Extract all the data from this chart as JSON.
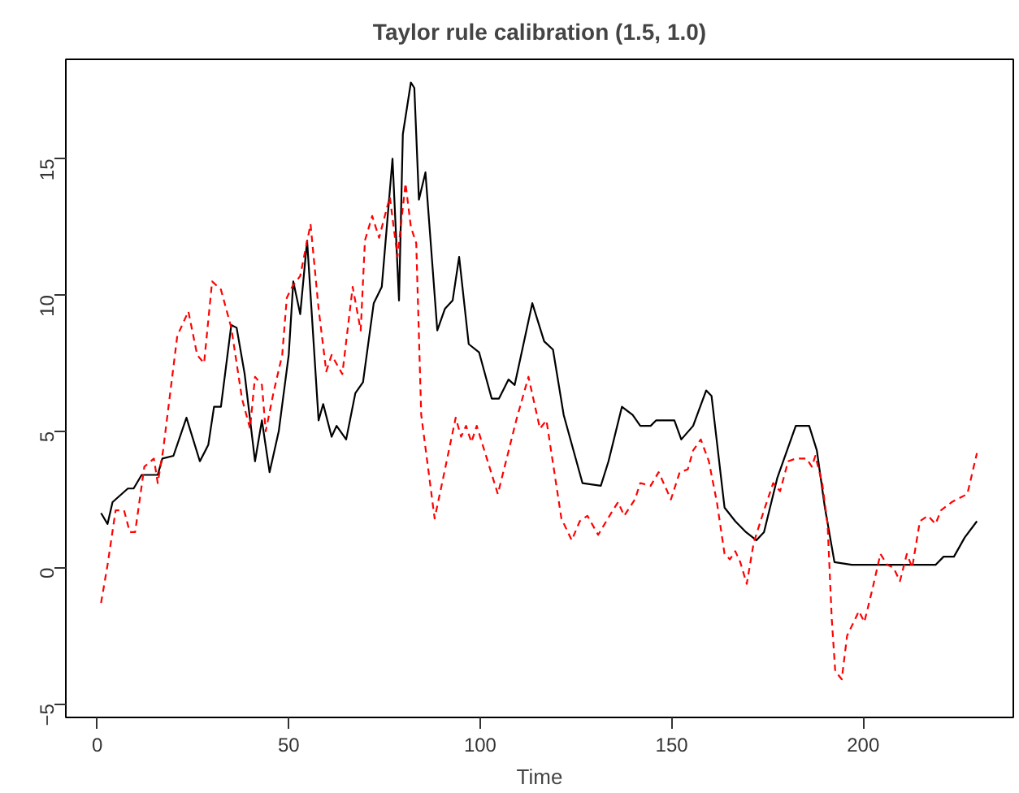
{
  "chart_data": {
    "type": "line",
    "title": "Taylor rule calibration (1.5, 1.0)",
    "xlabel": "Time",
    "xlim": [
      -8.2,
      239.2
    ],
    "ylim": [
      -5.5,
      18.65
    ],
    "xticks": [
      0,
      50,
      100,
      150,
      200
    ],
    "yticks": [
      -5,
      0,
      5,
      10,
      15
    ],
    "grid": false,
    "marker": "none",
    "series": [
      {
        "color": "#000000",
        "line_style": "solid",
        "x": [
          1,
          2.7,
          4,
          8,
          9.5,
          11.6,
          15.8,
          17,
          19.9,
          23.3,
          26.8,
          29,
          30.5,
          32.3,
          35,
          36.4,
          38.5,
          41.2,
          43,
          45,
          47.4,
          50,
          51.2,
          53,
          54.8,
          57.8,
          59,
          61.2,
          62.5,
          65,
          67.4,
          69.4,
          72.2,
          74.3,
          77.1,
          78.8,
          79.8,
          81.9,
          82.8,
          84,
          85.7,
          88.8,
          90.8,
          92.8,
          94.5,
          97,
          99.7,
          103,
          104.9,
          107.4,
          109,
          113.6,
          116.7,
          119,
          121.8,
          126.7,
          131.5,
          133.5,
          137,
          139.8,
          141.8,
          144.5,
          145.9,
          150.7,
          152.5,
          155.6,
          159,
          160.4,
          163.8,
          166.6,
          169.4,
          172.1,
          174.1,
          177.6,
          182.4,
          185.9,
          187.9,
          190,
          192.5,
          197,
          202.4,
          218.9,
          221,
          223.7,
          226.5,
          229.7
        ],
        "values": [
          2.0,
          1.6,
          2.4,
          2.9,
          2.9,
          3.4,
          3.4,
          4.0,
          4.1,
          5.5,
          3.9,
          4.5,
          5.9,
          5.9,
          8.9,
          8.8,
          7.1,
          3.9,
          5.4,
          3.5,
          5.0,
          7.8,
          10.5,
          9.3,
          12.0,
          5.4,
          6.0,
          4.8,
          5.2,
          4.7,
          6.4,
          6.8,
          9.7,
          10.3,
          15.0,
          9.8,
          15.9,
          17.8,
          17.6,
          13.5,
          14.5,
          8.7,
          9.5,
          9.8,
          11.4,
          8.2,
          7.9,
          6.2,
          6.2,
          6.9,
          6.7,
          9.7,
          8.3,
          8.0,
          5.6,
          3.1,
          3.0,
          3.9,
          5.9,
          5.6,
          5.2,
          5.2,
          5.4,
          5.4,
          4.7,
          5.2,
          6.5,
          6.3,
          2.2,
          1.7,
          1.3,
          1.0,
          1.3,
          3.3,
          5.2,
          5.2,
          4.3,
          2.2,
          0.2,
          0.1,
          0.1,
          0.1,
          0.4,
          0.4,
          1.1,
          1.7
        ]
      },
      {
        "color": "#ff0000",
        "line_style": "dashed",
        "x": [
          1,
          2.7,
          4.8,
          7,
          8.5,
          9.9,
          12.3,
          14.8,
          15.8,
          17.2,
          20.9,
          23.8,
          26.1,
          27.9,
          30,
          32.3,
          35,
          37.8,
          39.9,
          41.2,
          43,
          44,
          46,
          48.3,
          49.5,
          50.9,
          53,
          55.7,
          57.8,
          59.8,
          61.2,
          64,
          66.7,
          68.8,
          69.9,
          71.8,
          73.6,
          76.4,
          78.4,
          80.5,
          81.9,
          83.3,
          84.6,
          88.1,
          90.2,
          93.6,
          95,
          96.3,
          97.7,
          99.1,
          104.6,
          109.4,
          112.6,
          115.6,
          117.3,
          121.2,
          123.9,
          126,
          128,
          130.8,
          134.2,
          136,
          137.6,
          140.4,
          141.8,
          144.5,
          146.6,
          149.8,
          152.1,
          154.2,
          155.6,
          157.6,
          159.7,
          161.8,
          163.8,
          165.2,
          166.6,
          167.9,
          169.6,
          171.4,
          174.1,
          176.5,
          178.3,
          180.4,
          182.4,
          185.2,
          186.6,
          187.5,
          189.3,
          190.7,
          191.8,
          192.7,
          194.4,
          195.8,
          198.9,
          200.3,
          202.4,
          204.5,
          206.3,
          207.9,
          209.6,
          211.4,
          212.8,
          214.8,
          216.9,
          218.9,
          220.3,
          223.1,
          227.2,
          229.7
        ],
        "values": [
          -1.3,
          0.1,
          2.1,
          2.1,
          1.3,
          1.3,
          3.7,
          4.0,
          3.1,
          4.3,
          8.5,
          9.4,
          7.8,
          7.5,
          10.5,
          10.2,
          8.8,
          6.2,
          5.1,
          7.0,
          6.7,
          5.0,
          6.4,
          7.8,
          9.9,
          10.3,
          10.7,
          12.6,
          9.5,
          7.2,
          7.8,
          7.1,
          10.3,
          8.7,
          12.0,
          12.9,
          12.1,
          13.6,
          11.4,
          14.1,
          12.5,
          11.9,
          5.6,
          1.8,
          3.2,
          5.5,
          4.8,
          5.2,
          4.6,
          5.2,
          2.7,
          5.4,
          7.0,
          5.1,
          5.4,
          1.8,
          1.0,
          1.7,
          1.9,
          1.2,
          2.0,
          2.4,
          1.9,
          2.5,
          3.1,
          3.0,
          3.5,
          2.5,
          3.5,
          3.6,
          4.3,
          4.7,
          3.9,
          2.4,
          0.5,
          0.3,
          0.6,
          0.2,
          -0.6,
          0.9,
          2.1,
          3.1,
          2.8,
          3.9,
          4.0,
          4.0,
          3.7,
          4.1,
          3.1,
          1.6,
          -1.9,
          -3.8,
          -4.1,
          -2.5,
          -1.6,
          -2.0,
          -0.8,
          0.5,
          0.1,
          0.0,
          -0.5,
          0.5,
          0.0,
          1.7,
          1.9,
          1.6,
          2.1,
          2.4,
          2.7,
          4.2
        ]
      }
    ]
  }
}
